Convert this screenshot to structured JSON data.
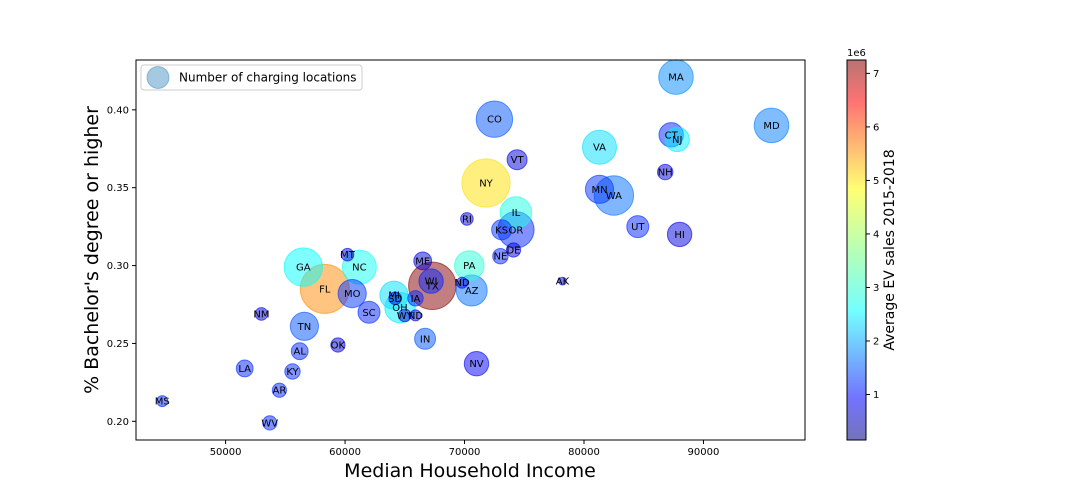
{
  "chart_data": {
    "type": "scatter",
    "xlabel": "Median Household Income",
    "ylabel": "% Bachelor's degree or higher",
    "xlim": [
      42500,
      98500
    ],
    "ylim": [
      0.188,
      0.432
    ],
    "x_ticks": [
      50000,
      60000,
      70000,
      80000,
      90000
    ],
    "x_tick_labels": [
      "50000",
      "60000",
      "70000",
      "80000",
      "90000"
    ],
    "y_ticks": [
      0.2,
      0.25,
      0.3,
      0.35,
      0.4
    ],
    "y_tick_labels": [
      "0.20",
      "0.25",
      "0.30",
      "0.35",
      "0.40"
    ],
    "grid": false,
    "legend": {
      "position": "top-left",
      "label": "Number of charging locations"
    },
    "colorbar": {
      "label": "Average EV sales 2015-2018",
      "exponent_label": "1e6",
      "range": [
        0.15,
        7.25
      ],
      "ticks": [
        1,
        2,
        3,
        4,
        5,
        6,
        7
      ],
      "tick_labels": [
        "1",
        "2",
        "3",
        "4",
        "5",
        "6",
        "7"
      ],
      "colormap": "jet",
      "alpha": 0.5
    },
    "size_encoding": "Number of charging locations",
    "color_encoding": "Average EV sales 2015-2018",
    "points": [
      {
        "label": "MA",
        "x": 87700,
        "y": 0.421,
        "size": 300,
        "color": 2.0
      },
      {
        "label": "MD",
        "x": 95700,
        "y": 0.39,
        "size": 300,
        "color": 1.9
      },
      {
        "label": "CO",
        "x": 72500,
        "y": 0.394,
        "size": 330,
        "color": 1.6
      },
      {
        "label": "CT",
        "x": 87300,
        "y": 0.384,
        "size": 150,
        "color": 1.3
      },
      {
        "label": "NJ",
        "x": 87800,
        "y": 0.381,
        "size": 150,
        "color": 2.7
      },
      {
        "label": "VA",
        "x": 81300,
        "y": 0.376,
        "size": 290,
        "color": 2.6
      },
      {
        "label": "VT",
        "x": 74400,
        "y": 0.368,
        "size": 100,
        "color": 0.8
      },
      {
        "label": "NY",
        "x": 71800,
        "y": 0.353,
        "size": 580,
        "color": 4.8
      },
      {
        "label": "NH",
        "x": 86800,
        "y": 0.36,
        "size": 60,
        "color": 0.8
      },
      {
        "label": "MN",
        "x": 81300,
        "y": 0.349,
        "size": 200,
        "color": 1.4
      },
      {
        "label": "WA",
        "x": 82500,
        "y": 0.345,
        "size": 390,
        "color": 1.8
      },
      {
        "label": "IL",
        "x": 74300,
        "y": 0.334,
        "size": 250,
        "color": 3.0
      },
      {
        "label": "UT",
        "x": 84500,
        "y": 0.325,
        "size": 120,
        "color": 1.3
      },
      {
        "label": "HI",
        "x": 88000,
        "y": 0.32,
        "size": 150,
        "color": 0.8
      },
      {
        "label": "RI",
        "x": 70200,
        "y": 0.33,
        "size": 40,
        "color": 0.8
      },
      {
        "label": "KS",
        "x": 73100,
        "y": 0.323,
        "size": 100,
        "color": 1.4
      },
      {
        "label": "OR",
        "x": 74300,
        "y": 0.323,
        "size": 330,
        "color": 1.3
      },
      {
        "label": "DE",
        "x": 74100,
        "y": 0.31,
        "size": 50,
        "color": 0.8
      },
      {
        "label": "NE",
        "x": 73000,
        "y": 0.306,
        "size": 60,
        "color": 1.3
      },
      {
        "label": "MT",
        "x": 60200,
        "y": 0.307,
        "size": 40,
        "color": 0.8
      },
      {
        "label": "ME",
        "x": 66500,
        "y": 0.303,
        "size": 80,
        "color": 0.8
      },
      {
        "label": "PA",
        "x": 70400,
        "y": 0.3,
        "size": 220,
        "color": 3.1
      },
      {
        "label": "GA",
        "x": 56500,
        "y": 0.299,
        "size": 370,
        "color": 2.8
      },
      {
        "label": "NC",
        "x": 61200,
        "y": 0.299,
        "size": 290,
        "color": 2.9
      },
      {
        "label": "AK",
        "x": 78200,
        "y": 0.29,
        "size": 15,
        "color": 0.8
      },
      {
        "label": "WI",
        "x": 67200,
        "y": 0.29,
        "size": 150,
        "color": 1.3
      },
      {
        "label": "ND",
        "x": 69800,
        "y": 0.289,
        "size": 30,
        "color": 0.8
      },
      {
        "label": "TX",
        "x": 67300,
        "y": 0.287,
        "size": 560,
        "color": 7.2
      },
      {
        "label": "FL",
        "x": 58300,
        "y": 0.285,
        "size": 600,
        "color": 5.4
      },
      {
        "label": "AZ",
        "x": 70600,
        "y": 0.284,
        "size": 240,
        "color": 1.8
      },
      {
        "label": "MO",
        "x": 60600,
        "y": 0.282,
        "size": 200,
        "color": 1.4
      },
      {
        "label": "MI",
        "x": 64100,
        "y": 0.281,
        "size": 200,
        "color": 2.6
      },
      {
        "label": "SD",
        "x": 64200,
        "y": 0.279,
        "size": 40,
        "color": 0.8
      },
      {
        "label": "IA",
        "x": 65900,
        "y": 0.279,
        "size": 60,
        "color": 1.3
      },
      {
        "label": "OH",
        "x": 64600,
        "y": 0.273,
        "size": 230,
        "color": 2.7
      },
      {
        "label": "SC",
        "x": 62000,
        "y": 0.27,
        "size": 120,
        "color": 1.3
      },
      {
        "label": "WY",
        "x": 65000,
        "y": 0.268,
        "size": 40,
        "color": 0.8
      },
      {
        "label": "ND",
        "x": 65900,
        "y": 0.268,
        "size": 30,
        "color": 0.8
      },
      {
        "label": "NM",
        "x": 53000,
        "y": 0.269,
        "size": 40,
        "color": 0.8
      },
      {
        "label": "TN",
        "x": 56600,
        "y": 0.261,
        "size": 200,
        "color": 1.6
      },
      {
        "label": "IN",
        "x": 66700,
        "y": 0.253,
        "size": 110,
        "color": 1.6
      },
      {
        "label": "OK",
        "x": 59400,
        "y": 0.249,
        "size": 50,
        "color": 0.8
      },
      {
        "label": "AL",
        "x": 56200,
        "y": 0.245,
        "size": 70,
        "color": 1.3
      },
      {
        "label": "NV",
        "x": 71000,
        "y": 0.237,
        "size": 150,
        "color": 1.0
      },
      {
        "label": "LA",
        "x": 51600,
        "y": 0.234,
        "size": 70,
        "color": 1.3
      },
      {
        "label": "KY",
        "x": 55600,
        "y": 0.232,
        "size": 60,
        "color": 1.3
      },
      {
        "label": "AR",
        "x": 54500,
        "y": 0.22,
        "size": 50,
        "color": 1.3
      },
      {
        "label": "MS",
        "x": 44700,
        "y": 0.213,
        "size": 30,
        "color": 1.3
      },
      {
        "label": "WV",
        "x": 53700,
        "y": 0.199,
        "size": 50,
        "color": 1.3
      }
    ]
  }
}
